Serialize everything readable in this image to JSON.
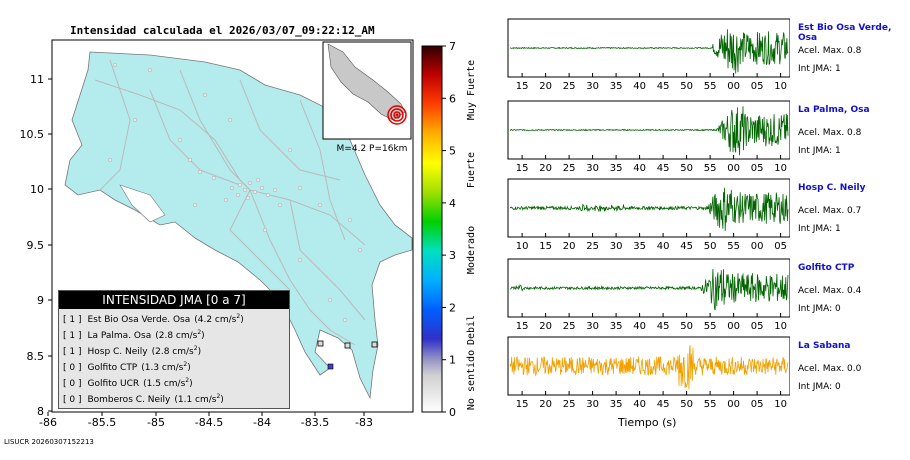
{
  "map": {
    "title": "Intensidad calculada el 2026/03/07_09:22:12_AM",
    "x_ticks": [
      "-86",
      "-85.5",
      "-85",
      "-84.5",
      "-84",
      "-83.5",
      "-83"
    ],
    "y_ticks": [
      "11",
      "10.5",
      "10",
      "9.5",
      "9",
      "8.5",
      "8"
    ],
    "inset_label": "M=4.2 P=16km",
    "land_color": "#b4ecee",
    "footer_stamp": "LISUCR 20260307152213"
  },
  "legend": {
    "title": "INTENSIDAD JMA [0 a 7]",
    "entries": [
      {
        "intensity": "[ 1 ]",
        "text": "Est Bio Osa Verde. Osa",
        "value": "(4.2 cm/s",
        "sup": "2",
        "close": ")"
      },
      {
        "intensity": "[ 1 ]",
        "text": "La Palma. Osa",
        "value": "(2.8 cm/s",
        "sup": "2",
        "close": ")"
      },
      {
        "intensity": "[ 1 ]",
        "text": "Hosp C. Neily",
        "value": "(2.8 cm/s",
        "sup": "2",
        "close": ")"
      },
      {
        "intensity": "[ 0 ]",
        "text": "Golfito CTP",
        "value": "(1.3 cm/s",
        "sup": "2",
        "close": ")"
      },
      {
        "intensity": "[ 0 ]",
        "text": "Golfito UCR",
        "value": "(1.5 cm/s",
        "sup": "2",
        "close": ")"
      },
      {
        "intensity": "[ 0 ]",
        "text": "Bomberos C. Neily",
        "value": "(1.1 cm/s",
        "sup": "2",
        "close": ")"
      }
    ]
  },
  "colorbar": {
    "ticks": [
      "0",
      "1",
      "2",
      "3",
      "4",
      "5",
      "6",
      "7"
    ],
    "labels": [
      "No sentido",
      "Debil",
      "Moderado",
      "Fuerte",
      "Muy Fuerte"
    ]
  },
  "chart_data": {
    "type": "line",
    "xlabel": "Tiempo (s)",
    "series": [
      {
        "name": "Est Bio Osa Verde, Osa",
        "acel": "Acel. Max. 0.8",
        "int": "Int JMA: 1",
        "color": "#006400",
        "ticks": [
          "15",
          "20",
          "25",
          "30",
          "35",
          "40",
          "45",
          "50",
          "55",
          "00",
          "05",
          "10"
        ],
        "onset": 0.72,
        "noise": 0.02,
        "amp": 0.95
      },
      {
        "name": "La Palma, Osa",
        "acel": "Acel. Max. 0.8",
        "int": "Int JMA: 1",
        "color": "#006400",
        "ticks": [
          "15",
          "20",
          "25",
          "30",
          "35",
          "40",
          "45",
          "50",
          "55",
          "00",
          "05",
          "10"
        ],
        "onset": 0.74,
        "noise": 0.02,
        "amp": 0.95
      },
      {
        "name": "Hosp C. Neily",
        "acel": "Acel. Max. 0.7",
        "int": "Int JMA: 1",
        "color": "#006400",
        "ticks": [
          "10",
          "15",
          "20",
          "25",
          "30",
          "35",
          "40",
          "45",
          "50",
          "55",
          "00",
          "05"
        ],
        "onset": 0.7,
        "noise": 0.06,
        "amp": 0.9
      },
      {
        "name": "Golfito CTP",
        "acel": "Acel. Max. 0.4",
        "int": "Int JMA: 0",
        "color": "#006400",
        "ticks": [
          "15",
          "20",
          "25",
          "30",
          "35",
          "40",
          "45",
          "50",
          "55",
          "00",
          "05",
          "10"
        ],
        "onset": 0.68,
        "noise": 0.05,
        "amp": 0.85
      },
      {
        "name": "La Sabana",
        "acel": "Acel. Max. 0.0",
        "int": "Int JMA: 0",
        "color": "#f0a000",
        "ticks": [
          "15",
          "20",
          "25",
          "30",
          "35",
          "40",
          "45",
          "50",
          "55",
          "00",
          "05",
          "10"
        ],
        "onset": 0.0,
        "noise": 0.3,
        "amp": 0.35
      }
    ]
  }
}
